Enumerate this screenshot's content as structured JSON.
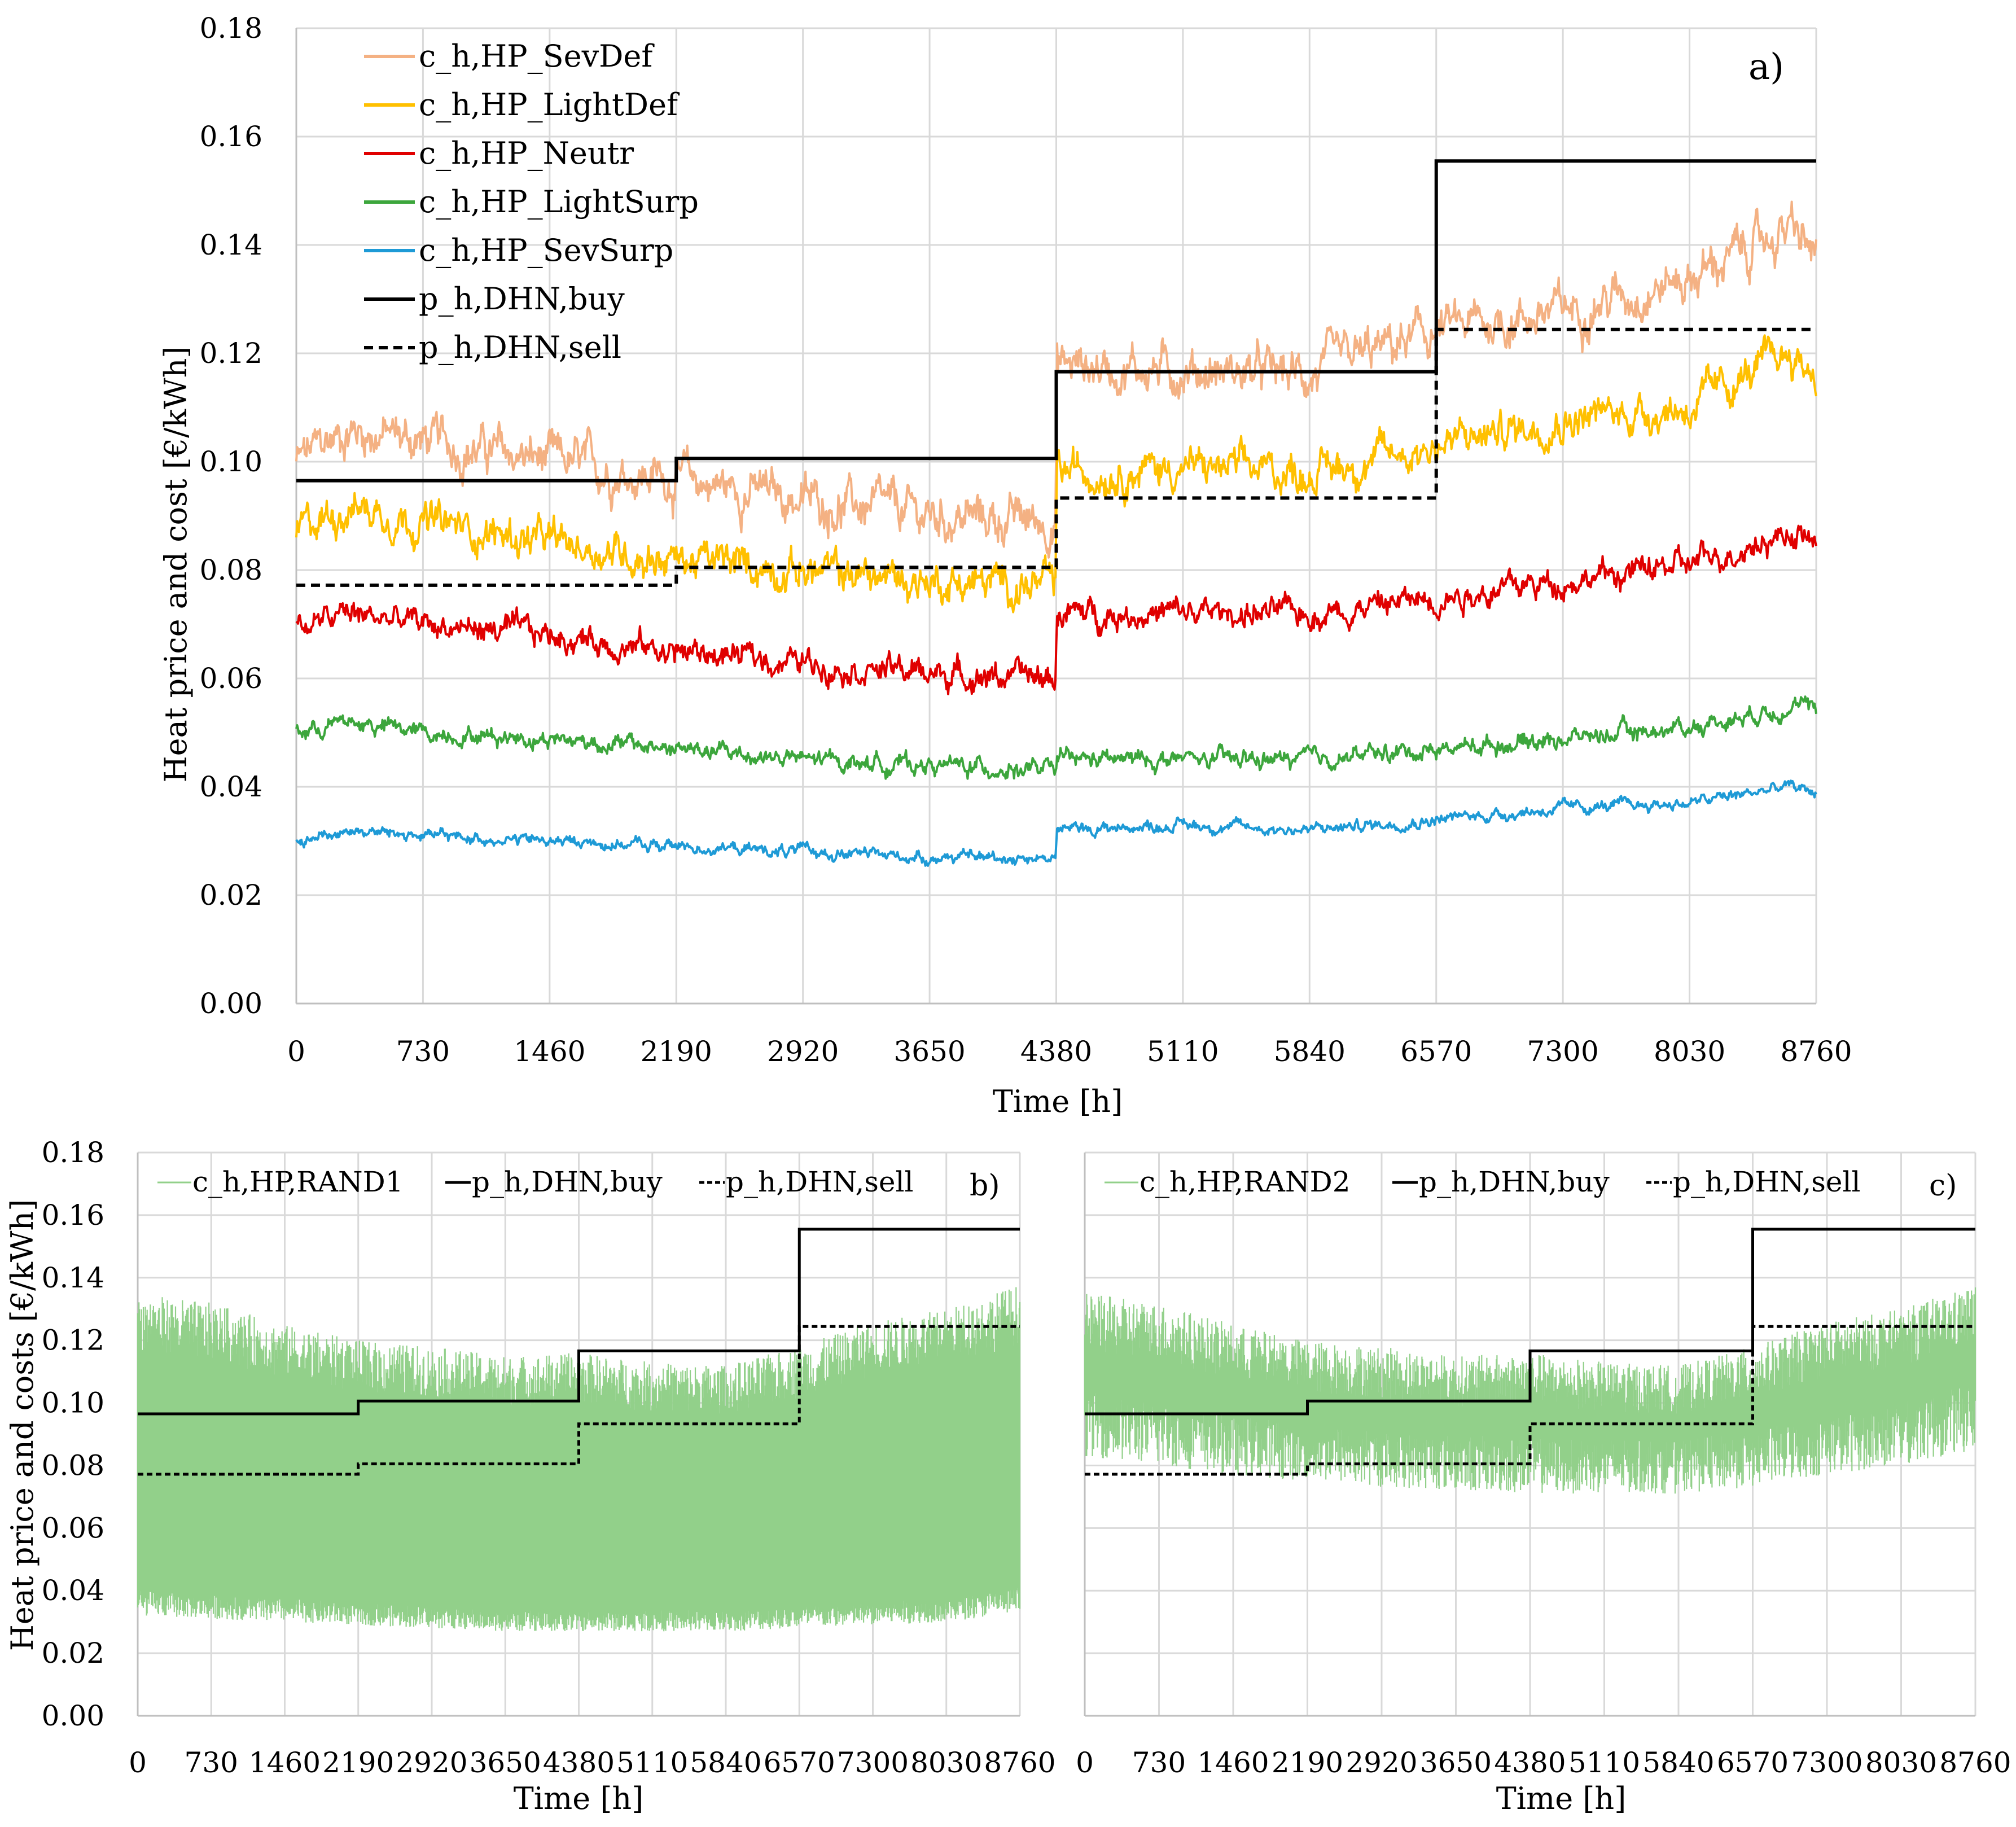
{
  "chart_data": [
    {
      "panel": "a)",
      "type": "line",
      "xlabel": "Time [h]",
      "ylabel": "Heat price and cost [€/kWh]",
      "x_ticks": [
        "0",
        "730",
        "1460",
        "2190",
        "2920",
        "3650",
        "4380",
        "5110",
        "5840",
        "6570",
        "7300",
        "8030",
        "8760"
      ],
      "y_ticks": [
        "0.00",
        "0.02",
        "0.04",
        "0.06",
        "0.08",
        "0.10",
        "0.12",
        "0.14",
        "0.16",
        "0.18"
      ],
      "xlim": [
        0,
        8760
      ],
      "ylim": [
        0,
        0.18
      ],
      "grid": true,
      "legend_position": "top-left",
      "series": [
        {
          "name": "c_h,HP_SevDef",
          "color": "#F4B183",
          "style": "solid",
          "noise": 0.003,
          "x": [
            0,
            300,
            730,
            1460,
            2190,
            2920,
            3650,
            4379,
            4381,
            5110,
            5840,
            6570,
            7300,
            8030,
            8600,
            8760
          ],
          "y": [
            0.1,
            0.106,
            0.104,
            0.1,
            0.097,
            0.093,
            0.09,
            0.089,
            0.118,
            0.117,
            0.116,
            0.124,
            0.128,
            0.134,
            0.143,
            0.138
          ]
        },
        {
          "name": "c_h,HP_LightDef",
          "color": "#FFC000",
          "style": "solid",
          "noise": 0.0025,
          "x": [
            0,
            300,
            730,
            1460,
            2190,
            2920,
            3650,
            4379,
            4381,
            5110,
            5840,
            6570,
            7300,
            8030,
            8600,
            8760
          ],
          "y": [
            0.087,
            0.092,
            0.089,
            0.085,
            0.082,
            0.08,
            0.078,
            0.077,
            0.098,
            0.099,
            0.098,
            0.103,
            0.108,
            0.11,
            0.12,
            0.116
          ]
        },
        {
          "name": "c_h,HP_Neutr",
          "color": "#E00000",
          "style": "solid",
          "noise": 0.0018,
          "x": [
            0,
            300,
            730,
            1460,
            2190,
            2920,
            3650,
            4379,
            4381,
            5110,
            5840,
            6570,
            7300,
            8030,
            8600,
            8760
          ],
          "y": [
            0.069,
            0.072,
            0.07,
            0.068,
            0.065,
            0.063,
            0.061,
            0.06,
            0.072,
            0.072,
            0.072,
            0.075,
            0.078,
            0.081,
            0.087,
            0.085
          ]
        },
        {
          "name": "c_h,HP_LightSurp",
          "color": "#3CA63C",
          "style": "solid",
          "noise": 0.0012,
          "x": [
            0,
            300,
            730,
            1460,
            2190,
            2920,
            3650,
            4379,
            4381,
            5110,
            5840,
            6570,
            7300,
            8030,
            8600,
            8760
          ],
          "y": [
            0.05,
            0.052,
            0.05,
            0.049,
            0.047,
            0.045,
            0.044,
            0.043,
            0.045,
            0.045,
            0.045,
            0.047,
            0.049,
            0.051,
            0.055,
            0.054
          ]
        },
        {
          "name": "c_h,HP_SevSurp",
          "color": "#1E9AD6",
          "style": "solid",
          "noise": 0.0008,
          "x": [
            0,
            300,
            730,
            1460,
            2190,
            2920,
            3650,
            4379,
            4381,
            5110,
            5840,
            6570,
            7300,
            8030,
            8600,
            8760
          ],
          "y": [
            0.03,
            0.032,
            0.031,
            0.03,
            0.029,
            0.028,
            0.027,
            0.027,
            0.032,
            0.033,
            0.032,
            0.034,
            0.036,
            0.037,
            0.04,
            0.039
          ]
        },
        {
          "name": "p_h,DHN,buy",
          "color": "#000000",
          "style": "solid",
          "step": true,
          "x": [
            0,
            2190,
            4380,
            6570,
            8760
          ],
          "y": [
            0.0965,
            0.1006,
            0.1166,
            0.1555,
            0.1555
          ]
        },
        {
          "name": "p_h,DHN,sell",
          "color": "#000000",
          "style": "dashed",
          "step": true,
          "x": [
            0,
            2190,
            4380,
            6570,
            8760
          ],
          "y": [
            0.0772,
            0.0805,
            0.0933,
            0.1244,
            0.1244
          ]
        }
      ]
    },
    {
      "panel": "b)",
      "type": "line",
      "xlabel": "Time [h]",
      "ylabel": "Heat price and costs [€/kWh]",
      "x_ticks": [
        "0",
        "730",
        "1460",
        "2190",
        "2920",
        "3650",
        "4380",
        "5110",
        "5840",
        "6570",
        "7300",
        "8030",
        "8760"
      ],
      "y_ticks": [
        "0.00",
        "0.02",
        "0.04",
        "0.06",
        "0.08",
        "0.10",
        "0.12",
        "0.14",
        "0.16",
        "0.18"
      ],
      "xlim": [
        0,
        8760
      ],
      "ylim": [
        0,
        0.18
      ],
      "grid": true,
      "legend_position": "top",
      "series": [
        {
          "name": "c_h,HP,RAND1",
          "color": "#92D08A",
          "style": "band",
          "x": [
            0,
            730,
            1460,
            2190,
            2920,
            3650,
            4380,
            5110,
            5840,
            6570,
            7300,
            8030,
            8760
          ],
          "upper": [
            0.135,
            0.132,
            0.125,
            0.12,
            0.118,
            0.115,
            0.116,
            0.113,
            0.112,
            0.118,
            0.126,
            0.13,
            0.138
          ],
          "lower": [
            0.032,
            0.031,
            0.03,
            0.029,
            0.028,
            0.027,
            0.027,
            0.027,
            0.027,
            0.028,
            0.029,
            0.03,
            0.033
          ]
        },
        {
          "name": "p_h,DHN,buy",
          "color": "#000000",
          "style": "solid",
          "step": true,
          "x": [
            0,
            2190,
            4380,
            6570,
            8760
          ],
          "y": [
            0.0965,
            0.1006,
            0.1166,
            0.1555,
            0.1555
          ]
        },
        {
          "name": "p_h,DHN,sell",
          "color": "#000000",
          "style": "dashed",
          "step": true,
          "x": [
            0,
            2190,
            4380,
            6570,
            8760
          ],
          "y": [
            0.0772,
            0.0805,
            0.0933,
            0.1244,
            0.1244
          ]
        }
      ]
    },
    {
      "panel": "c)",
      "type": "line",
      "xlabel": "Time [h]",
      "ylabel": "",
      "x_ticks": [
        "0",
        "730",
        "1460",
        "2190",
        "2920",
        "3650",
        "4380",
        "5110",
        "5840",
        "6570",
        "7300",
        "8030",
        "8760"
      ],
      "xlim": [
        0,
        8760
      ],
      "ylim": [
        0,
        0.18
      ],
      "grid": true,
      "legend_position": "top",
      "series": [
        {
          "name": "c_h,HP,RAND2",
          "color": "#92D08A",
          "style": "band",
          "x": [
            0,
            730,
            1460,
            2190,
            2920,
            3650,
            4380,
            5110,
            5840,
            6570,
            7300,
            8030,
            8760
          ],
          "upper": [
            0.135,
            0.132,
            0.125,
            0.12,
            0.118,
            0.115,
            0.116,
            0.113,
            0.112,
            0.118,
            0.126,
            0.13,
            0.138
          ],
          "lower": [
            0.083,
            0.08,
            0.077,
            0.075,
            0.073,
            0.072,
            0.071,
            0.071,
            0.071,
            0.073,
            0.077,
            0.08,
            0.085
          ]
        },
        {
          "name": "p_h,DHN,buy",
          "color": "#000000",
          "style": "solid",
          "step": true,
          "x": [
            0,
            2190,
            4380,
            6570,
            8760
          ],
          "y": [
            0.0965,
            0.1006,
            0.1166,
            0.1555,
            0.1555
          ]
        },
        {
          "name": "p_h,DHN,sell",
          "color": "#000000",
          "style": "dashed",
          "step": true,
          "x": [
            0,
            2190,
            4380,
            6570,
            8760
          ],
          "y": [
            0.0772,
            0.0805,
            0.0933,
            0.1244,
            0.1244
          ]
        }
      ]
    }
  ]
}
